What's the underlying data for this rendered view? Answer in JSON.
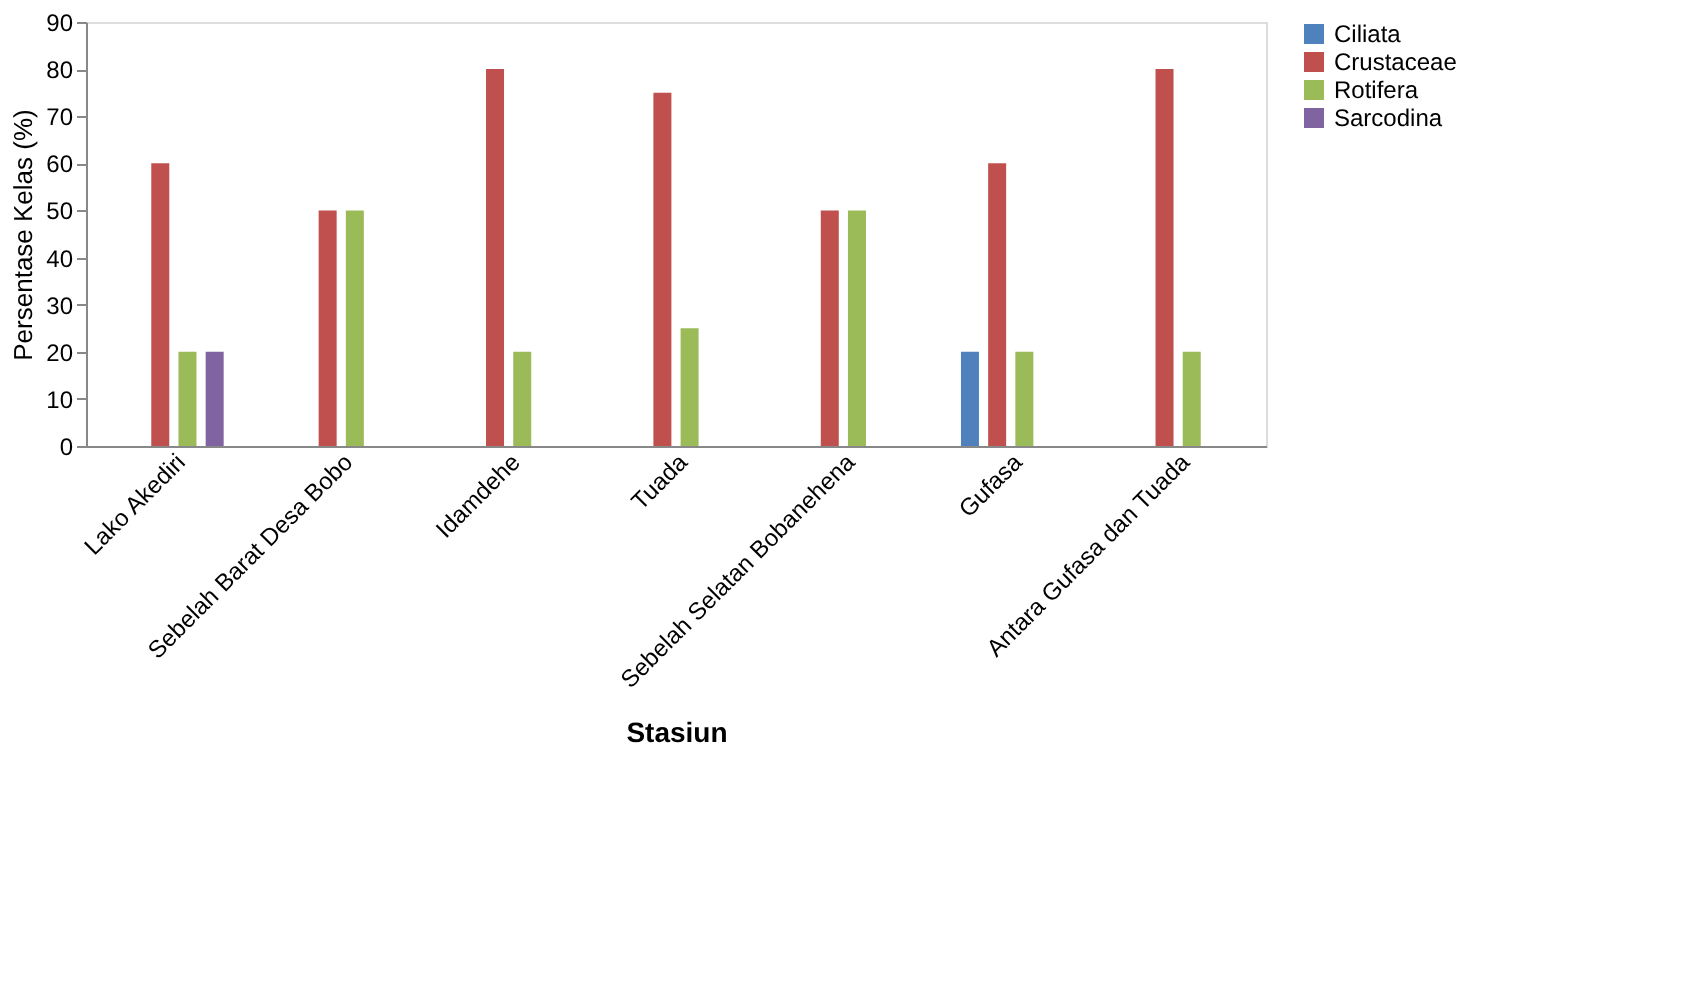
{
  "chart_data": {
    "type": "bar",
    "xlabel": "Stasiun",
    "ylabel": "Persentase Kelas (%)",
    "categories": [
      "Lako Akediri",
      "Sebelah Barat Desa Bobo",
      "Idamdehe",
      "Tuada",
      "Sebelah Selatan Bobanehena",
      "Gufasa",
      "Antara Gufasa dan Tuada"
    ],
    "series": [
      {
        "name": "Ciliata",
        "color": "#4f81bd",
        "values": [
          0,
          0,
          0,
          0,
          0,
          20,
          0
        ]
      },
      {
        "name": "Crustaceae",
        "color": "#c0504d",
        "values": [
          60,
          50,
          80,
          75,
          50,
          60,
          80
        ]
      },
      {
        "name": "Rotifera",
        "color": "#9bbb59",
        "values": [
          20,
          50,
          20,
          25,
          50,
          20,
          20
        ]
      },
      {
        "name": "Sarcodina",
        "color": "#8064a2",
        "values": [
          20,
          0,
          0,
          0,
          0,
          0,
          0
        ]
      }
    ],
    "ylim": [
      0,
      90
    ],
    "yticks": [
      0,
      10,
      20,
      30,
      40,
      50,
      60,
      70,
      80,
      90
    ],
    "grid": false,
    "legend": "right"
  }
}
